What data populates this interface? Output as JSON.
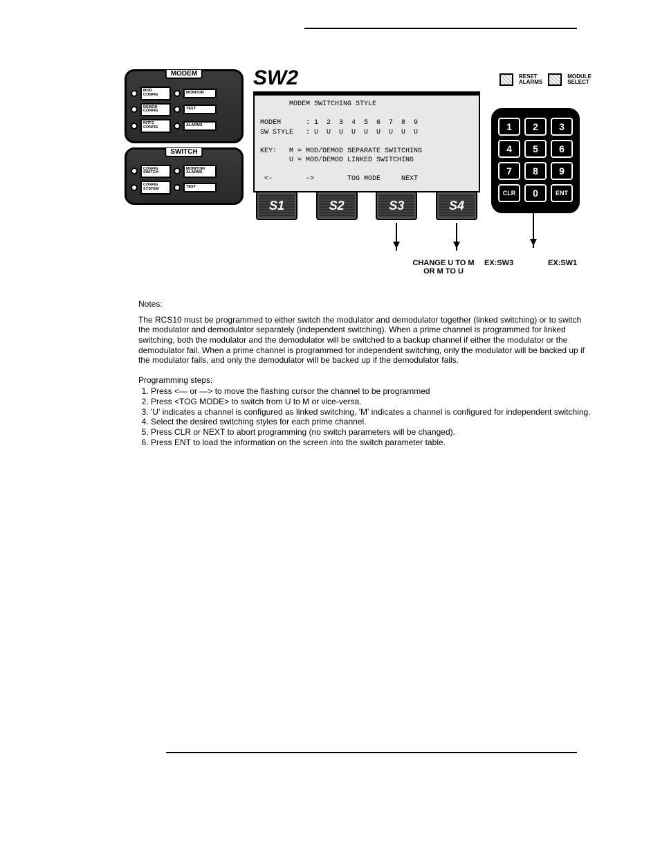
{
  "panel": {
    "modem": {
      "title": "MODEM",
      "rows": [
        {
          "led": true,
          "leftBtn": "MOD\nCONFIG",
          "led2": true,
          "rightBtn": "MONITOR"
        },
        {
          "led": true,
          "leftBtn": "DEMOD\nCONFIG",
          "led2": true,
          "rightBtn": "TEST"
        },
        {
          "led": true,
          "leftBtn": "INTFC\nCONFIG",
          "led2": true,
          "rightBtn": "ALARMS"
        }
      ]
    },
    "switch": {
      "title": "SWITCH",
      "rows": [
        {
          "led": true,
          "leftBtn": "CONFIG\nSWITCH",
          "led2": true,
          "rightBtn": "MONITOR/\nALARMS"
        },
        {
          "led": true,
          "leftBtn": "CONFIG\nSYSTEM",
          "led2": true,
          "rightBtn": "TEST"
        }
      ]
    }
  },
  "sw2_title": "SW2",
  "lcd": {
    "line1": "       MODEM SWITCHING STYLE",
    "line2": "",
    "line3": "MODEM      : 1  2  3  4  5  6  7  8  9",
    "line4": "SW STYLE   : U  U  U  U  U  U  U  U  U",
    "line5": "",
    "line6": "KEY:   M = MOD/DEMOD SEPARATE SWITCHING",
    "line7": "       U = MOD/DEMOD LINKED SWITCHING",
    "line8": "",
    "line9": " <-        ->        TOG MODE     NEXT"
  },
  "sbuttons": [
    "S1",
    "S2",
    "S3",
    "S4"
  ],
  "top_right": {
    "reset": "RESET\nALARMS",
    "module": "MODULE\nSELECT"
  },
  "keypad": [
    "1",
    "2",
    "3",
    "4",
    "5",
    "6",
    "7",
    "8",
    "9",
    "CLR",
    "0",
    "ENT"
  ],
  "ex_labels": {
    "change": "CHANGE U TO M\nOR M TO U",
    "sw3": "EX:SW3",
    "sw1": "EX:SW1"
  },
  "notes": {
    "heading": "Notes:",
    "para": "The RCS10 must be programmed to either switch the modulator and demodulator together (linked switching) or to switch the modulator and demodulator separately (independent switching). When a prime channel is programmed for linked switching, both the modulator and the demodulator will be switched to a backup channel if either the modulator or the demodulator fail. When a prime channel is programmed for independent switching, only the modulator will be backed up if the modulator fails, and only the demodulator will be backed up if the demodulator fails.",
    "steps_heading": "Programming steps:",
    "steps": [
      "Press  <—  or  —>   to move the flashing cursor the channel to be programmed",
      "Press <TOG MODE> to switch from U to M or vice-versa.",
      "'U' indicates a channel is configured as linked switching, 'M' indicates a channel is configured for independent switching.",
      "Select the desired switching styles for each prime channel.",
      "Press CLR or NEXT to abort programming (no switch parameters will be changed).",
      "Press ENT to load the information on the screen into the switch parameter table."
    ]
  }
}
